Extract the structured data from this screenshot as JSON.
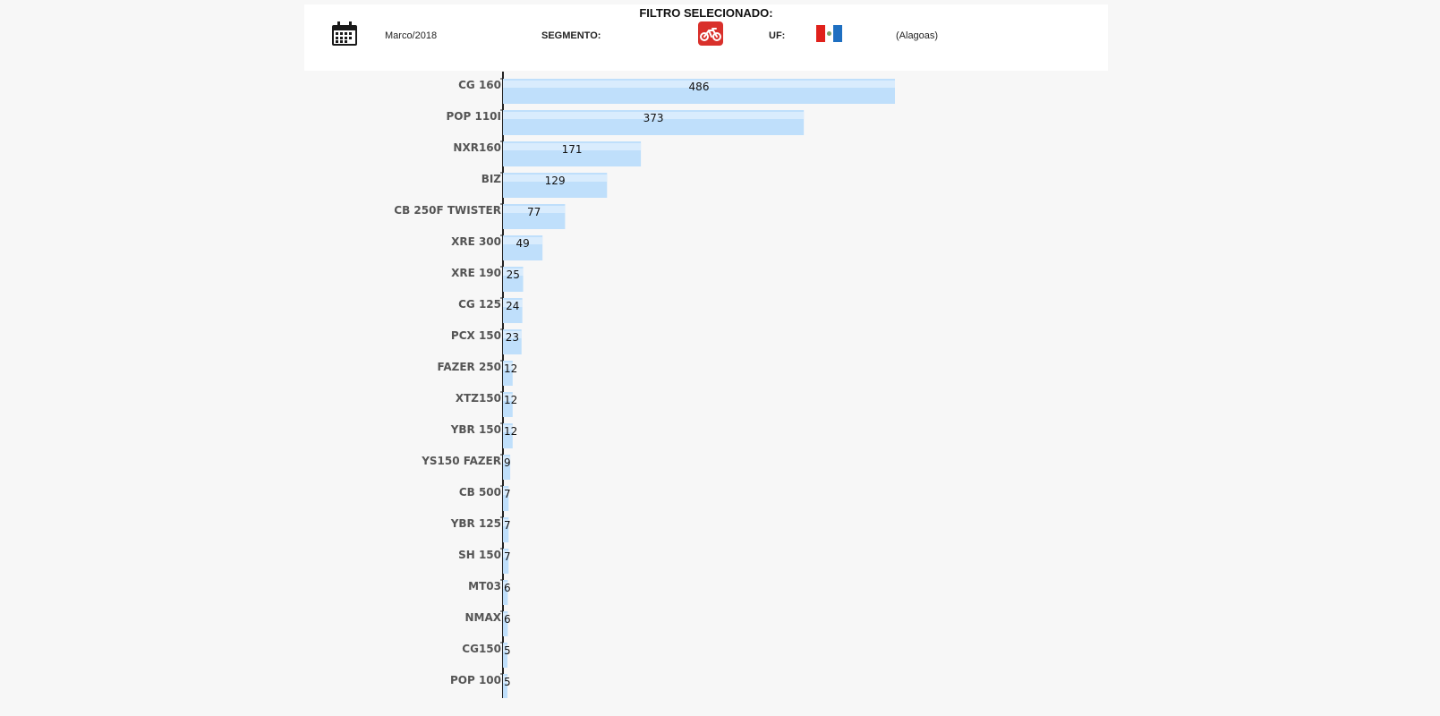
{
  "filter": {
    "title": "FILTRO SELECIONADO:",
    "period": "Marco/2018",
    "segment_label": "SEGMENTO:",
    "segment_icon": "motorcycle-icon",
    "uf_label": "UF:",
    "state_name": "(Alagoas)",
    "flag_icon": "alagoas-flag-icon"
  },
  "colors": {
    "bar_fill": "#bfdffb",
    "bar_highlight": "#d9ecfd",
    "axis": "#222222",
    "segment_badge": "#d9302b"
  },
  "chart_data": {
    "type": "bar",
    "orientation": "horizontal",
    "categories": [
      "CG 160",
      "POP 110I",
      "NXR160",
      "BIZ",
      "CB 250F TWISTER",
      "XRE 300",
      "XRE 190",
      "CG 125",
      "PCX 150",
      "FAZER 250",
      "XTZ150",
      "YBR 150",
      "YS150 FAZER",
      "CB 500",
      "YBR 125",
      "SH 150",
      "MT03",
      "NMAX",
      "CG150",
      "POP 100"
    ],
    "values": [
      486,
      373,
      171,
      129,
      77,
      49,
      25,
      24,
      23,
      12,
      12,
      12,
      9,
      7,
      7,
      7,
      6,
      6,
      5,
      5
    ],
    "title": "",
    "xlabel": "",
    "ylabel": "",
    "grid": false,
    "legend": "none"
  }
}
